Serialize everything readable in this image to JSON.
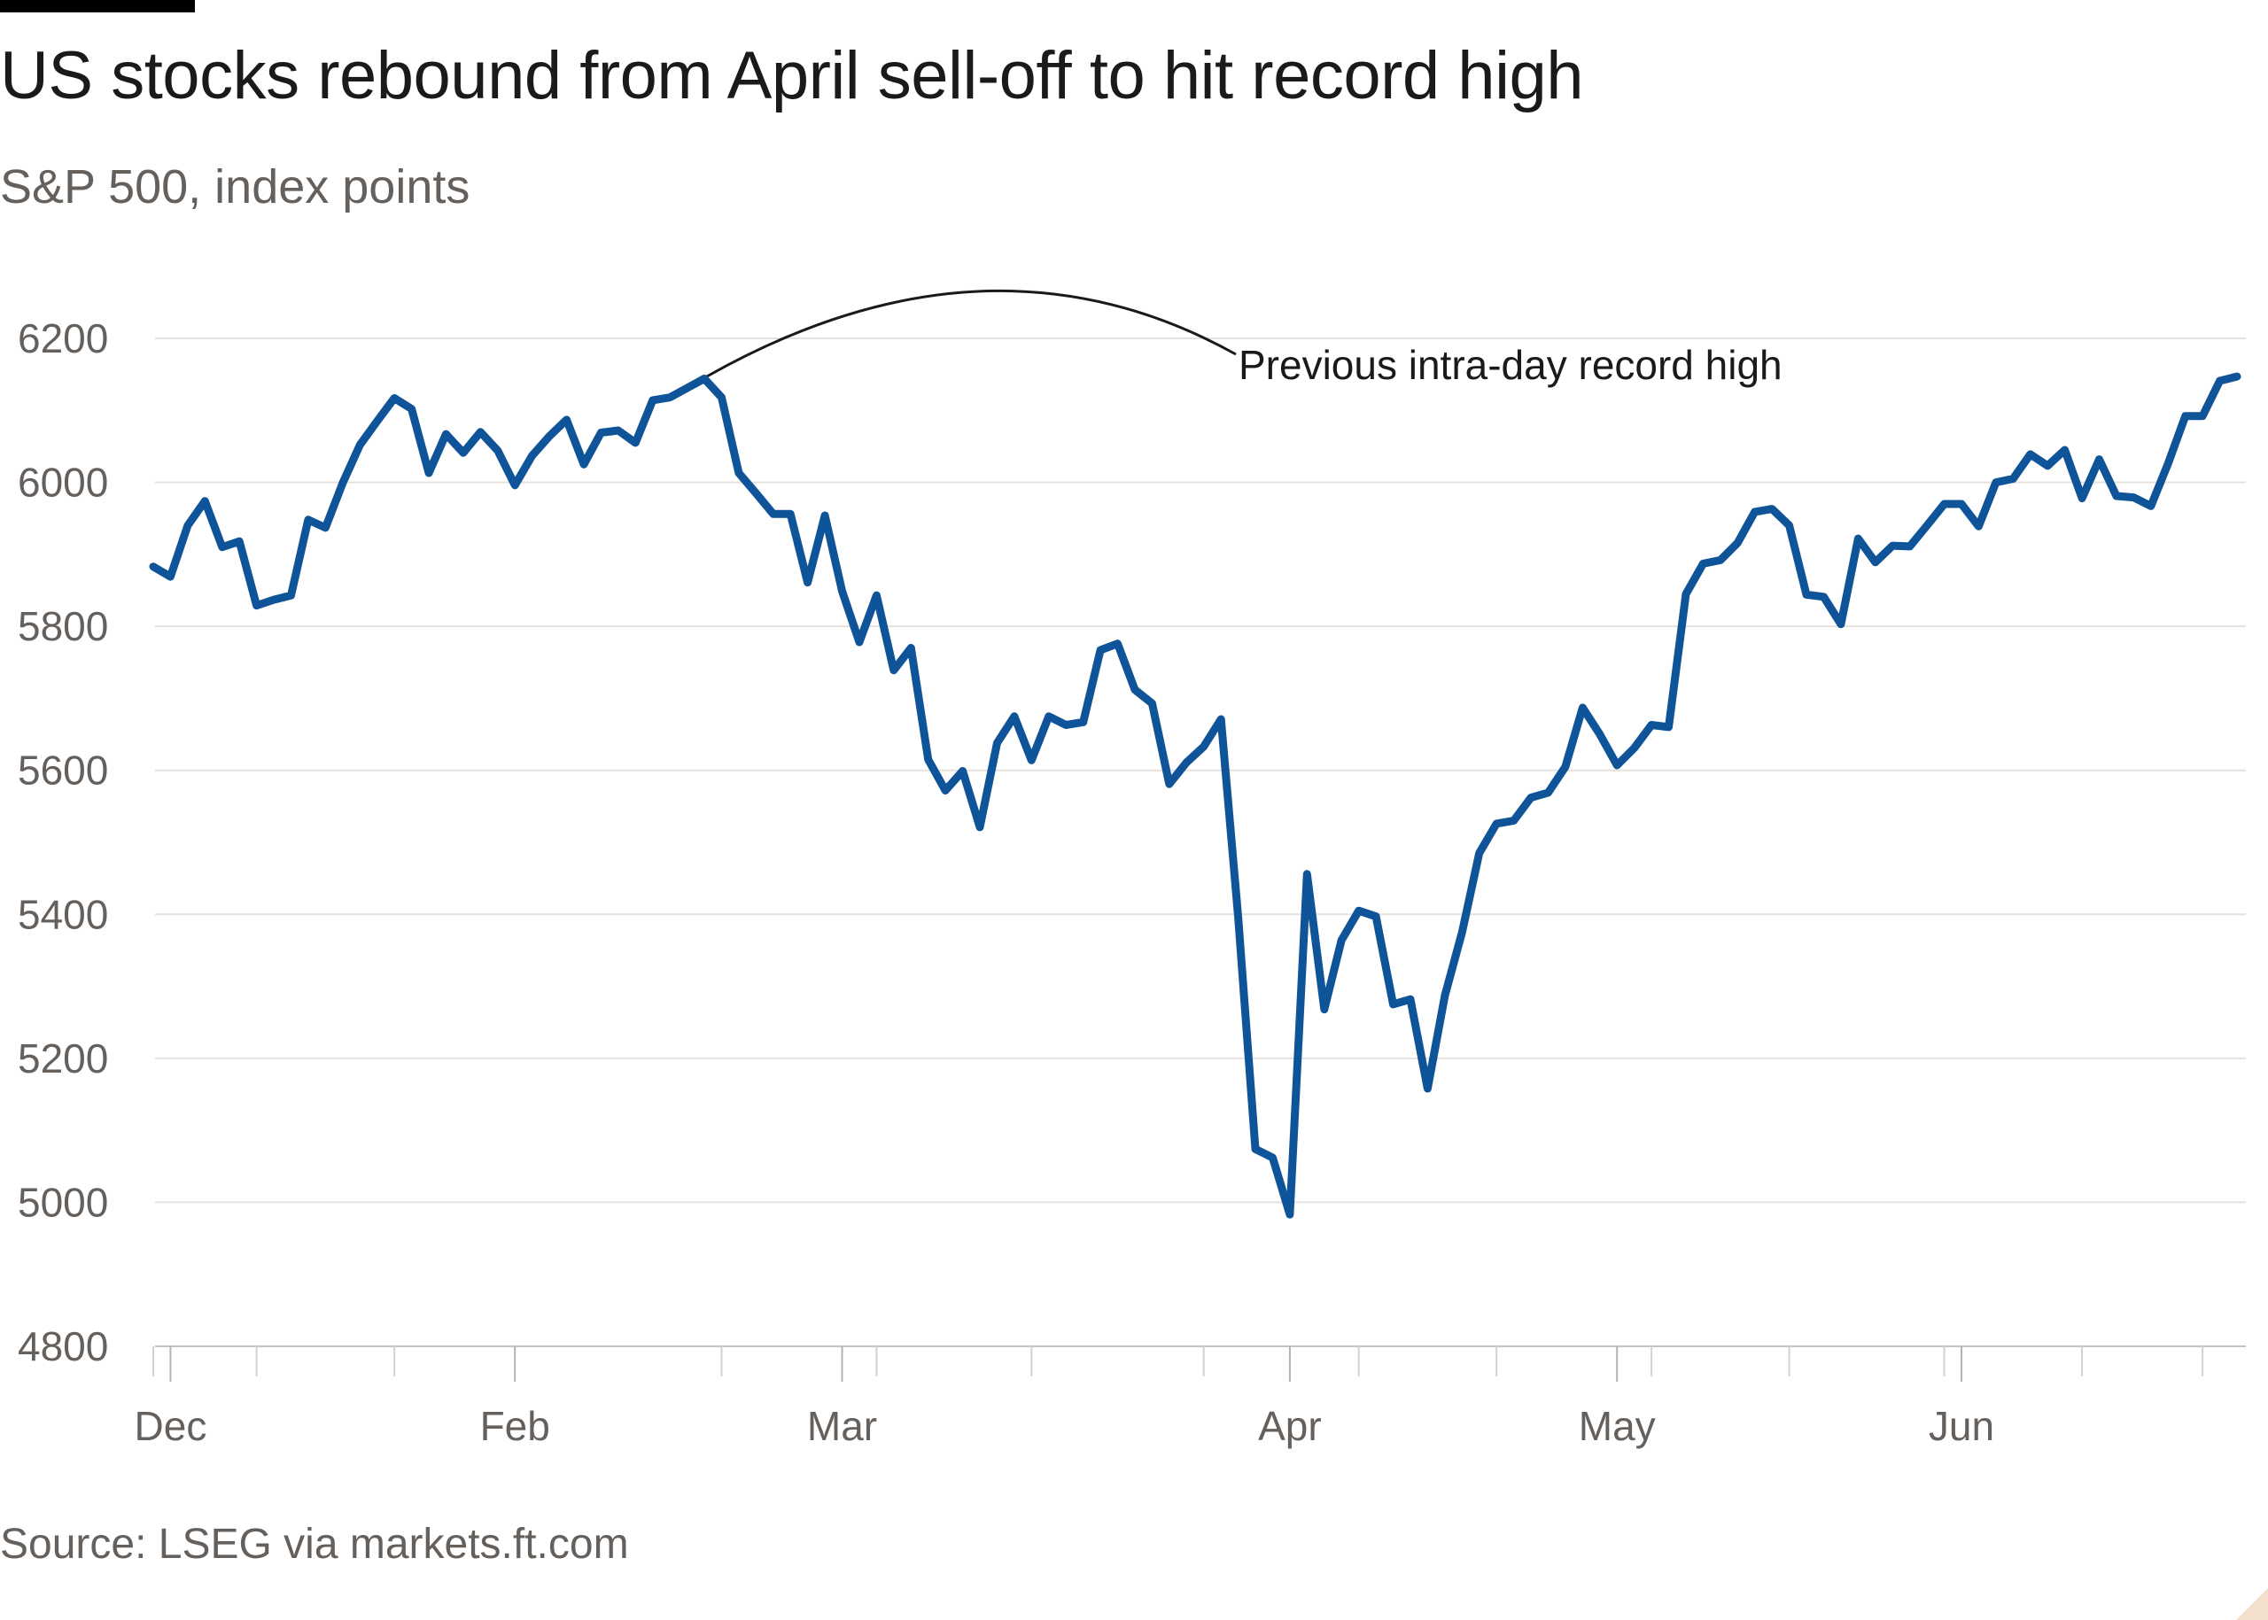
{
  "title": "US stocks rebound from April sell-off to hit record high",
  "subtitle": "S&P 500, index points",
  "source": "Source: LSEG via markets.ft.com",
  "colors": {
    "line": "#0f5499",
    "grid": "#e6e1dc",
    "text": "#66605c",
    "title": "#1a1a1a"
  },
  "chart_data": {
    "type": "line",
    "title": "US stocks rebound from April sell-off to hit record high",
    "subtitle": "S&P 500, index points",
    "xlabel": "",
    "ylabel": "S&P 500, index points",
    "ylim": [
      4800,
      6200
    ],
    "yticks": [
      4800,
      5000,
      5200,
      5400,
      5600,
      5800,
      6000,
      6200
    ],
    "xticks": [
      "Dec",
      "Feb",
      "Mar",
      "Apr",
      "May",
      "Jun"
    ],
    "grid": true,
    "legend": "none",
    "annotation": {
      "text": "Previous intra-day record high",
      "value": 6147
    },
    "series": [
      {
        "name": "",
        "values": [
          5883,
          5869,
          5940,
          5974,
          5910,
          5918,
          5829,
          5837,
          5843,
          5948,
          5937,
          5999,
          6052,
          6085,
          6117,
          6102,
          6013,
          6067,
          6041,
          6070,
          6044,
          5996,
          6037,
          6064,
          6087,
          6025,
          6069,
          6072,
          6055,
          6114,
          6118,
          6131,
          6144,
          6118,
          6013,
          5985,
          5956,
          5956,
          5861,
          5954,
          5849,
          5778,
          5843,
          5739,
          5770,
          5615,
          5572,
          5599,
          5521,
          5638,
          5675,
          5614,
          5675,
          5663,
          5667,
          5767,
          5776,
          5712,
          5693,
          5581,
          5611,
          5633,
          5671,
          5396,
          5074,
          5062,
          4983,
          5456,
          5268,
          5364,
          5405,
          5397,
          5275,
          5282,
          5158,
          5287,
          5375,
          5485,
          5526,
          5530,
          5562,
          5569,
          5605,
          5687,
          5650,
          5607,
          5631,
          5663,
          5660,
          5845,
          5887,
          5892,
          5916,
          5959,
          5963,
          5940,
          5844,
          5841,
          5803,
          5922,
          5889,
          5912,
          5911,
          5940,
          5970,
          5970,
          5939,
          6000,
          6005,
          6039,
          6023,
          6045,
          5978,
          6032,
          5981,
          5979,
          5967,
          6026,
          6092,
          6092,
          6141,
          6147
        ]
      }
    ]
  }
}
